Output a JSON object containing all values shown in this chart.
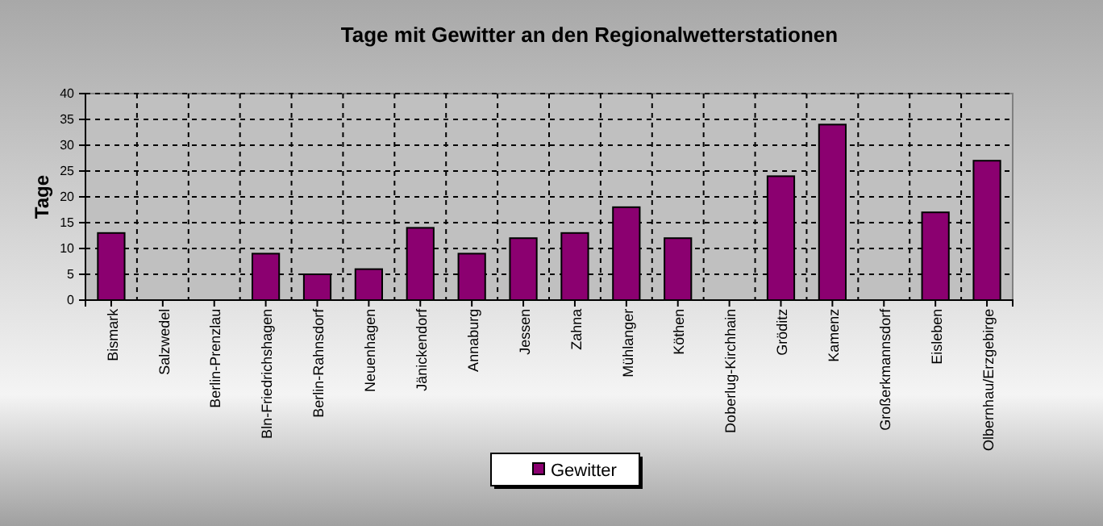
{
  "chart_data": {
    "type": "bar",
    "title": "Tage mit Gewitter an den Regionalwetterstationen",
    "ylabel": "Tage",
    "categories": [
      "Bismark",
      "Salzwedel",
      "Berlin-Prenzlau",
      "Bln-Friedrichshagen",
      "Berlin-Rahnsdorf",
      "Neuenhagen",
      "Jänickendorf",
      "Annaburg",
      "Jessen",
      "Zahna",
      "Mühlanger",
      "Köthen",
      "Doberlug-Kirchhain",
      "Gröditz",
      "Kamenz",
      "Großerkmannsdorf",
      "Eisleben",
      "Olbernhau/Erzgebirge"
    ],
    "series": [
      {
        "name": "Gewitter",
        "color": "#8b0070",
        "values": [
          13,
          null,
          null,
          9,
          5,
          6,
          14,
          9,
          12,
          13,
          18,
          12,
          null,
          24,
          34,
          null,
          17,
          27
        ]
      }
    ],
    "ylim": [
      0,
      40
    ],
    "yticks": [
      0,
      5,
      10,
      15,
      20,
      25,
      30,
      35,
      40
    ],
    "grid": true,
    "legend": "bottom"
  }
}
